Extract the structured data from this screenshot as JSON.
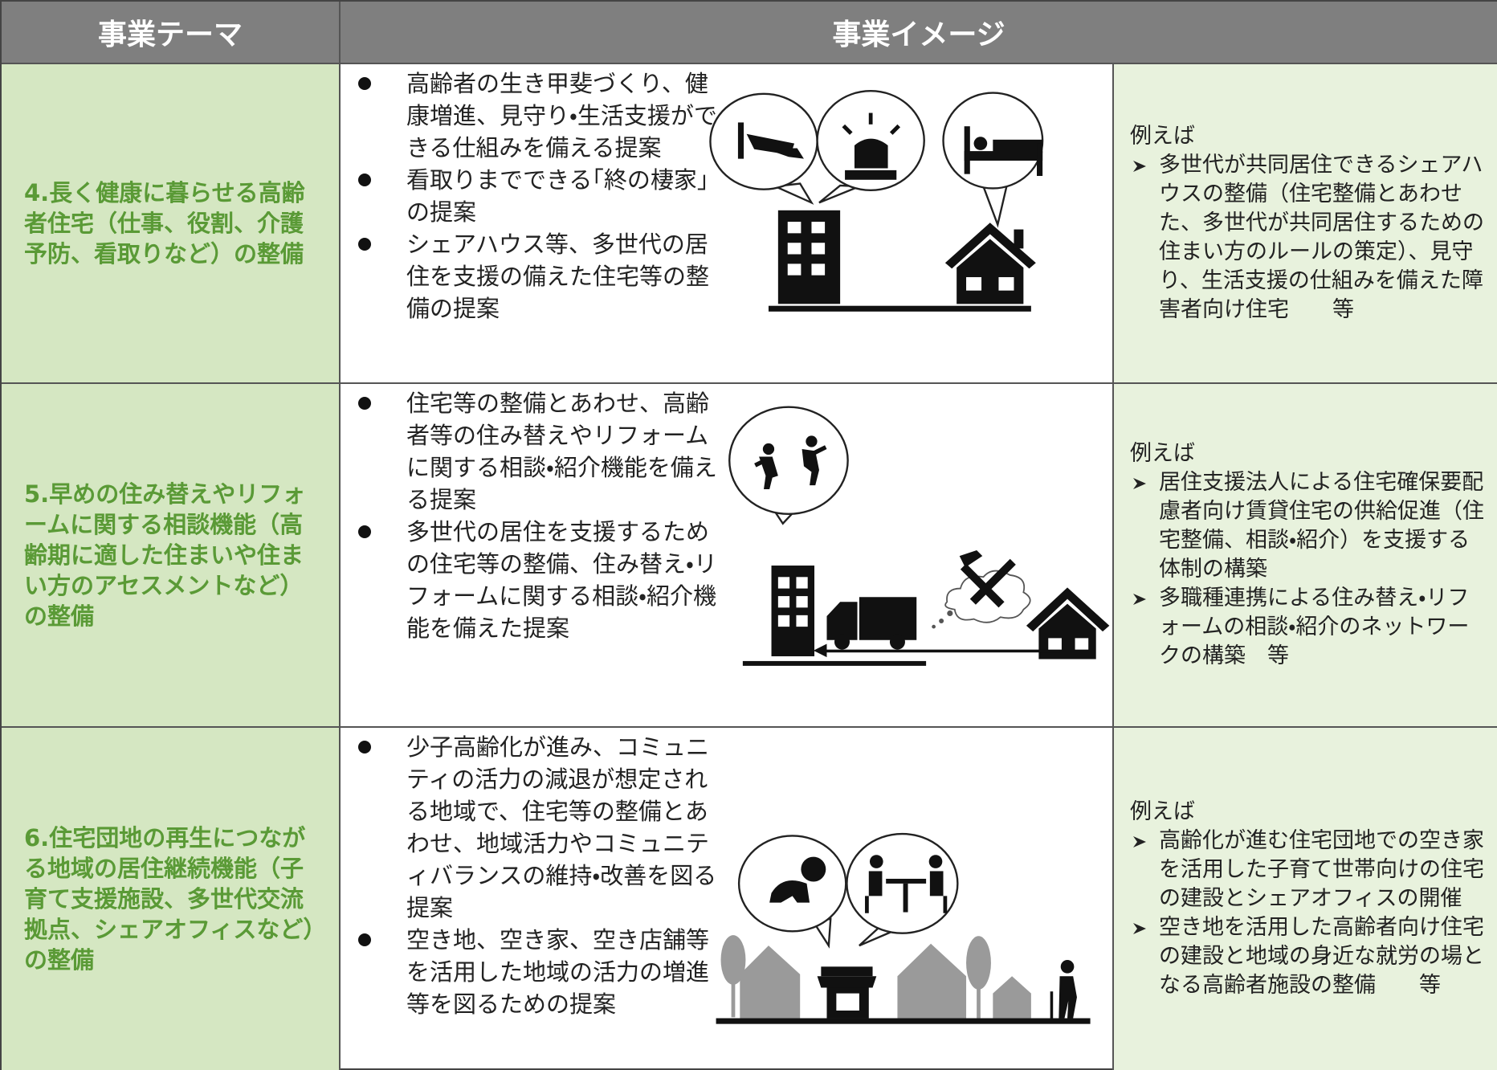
{
  "header": {
    "theme": "事業テーマ",
    "image": "事業イメージ"
  },
  "rows": [
    {
      "theme": "4.長く健康に暮らせる高齢者住宅（仕事、役割、介護予防、看取りなど）の整備",
      "bullets": [
        "高齢者の生き甲斐づくり、健康増進、見守り・生活支援ができる仕組みを備える提案",
        "看取りまでできる｢終の棲家｣の提案",
        "シェアハウス等、多世代の居住を支援の備えた住宅等の整備の提案"
      ],
      "examples": {
        "intro": "例えば",
        "items": [
          "多世代が共同居住できるシェアハウスの整備（住宅整備とあわせた、多世代が共同居住するための住まい方のルールの策定）、見守り、生活支援の仕組みを備えた障害者向け住宅　　等"
        ]
      }
    },
    {
      "theme": "5.早めの住み替えやリフォームに関する相談機能（高齢期に適した住まいや住まい方のアセスメントなど）の整備",
      "bullets": [
        "住宅等の整備とあわせ、高齢者等の住み替えやリフォームに関する相談・紹介機能を備える提案",
        "多世代の居住を支援するための住宅等の整備、住み替え・リフォームに関する相談・紹介機能を備えた提案"
      ],
      "examples": {
        "intro": "例えば",
        "items": [
          "居住支援法人による住宅確保要配慮者向け賃貸住宅の供給促進（住宅整備、相談・紹介）を支援する体制の構築",
          "多職種連携による住み替え・リフォームの相談・紹介のネットワークの構築　等"
        ]
      }
    },
    {
      "theme": "6.住宅団地の再生につながる地域の居住継続機能（子育て支援施設、多世代交流拠点、シェアオフィスなど）の整備",
      "bullets": [
        "少子高齢化が進み、コミュニティの活力の減退が想定される地域で、住宅等の整備とあわせ、地域活力やコミュニティバランスの維持・改善を図る提案",
        "空き地、空き家、空き店舗等を活用した地域の活力の増進等を図るための提案"
      ],
      "examples": {
        "intro": "例えば",
        "items": [
          "高齢化が進む住宅団地での空き家を活用した子育て世帯向けの住宅の建設とシェアオフィスの開催",
          "空き地を活用した高齢者向け住宅の建設と地域の身近な就労の場となる高齢者施設の整備　　等"
        ]
      }
    }
  ]
}
